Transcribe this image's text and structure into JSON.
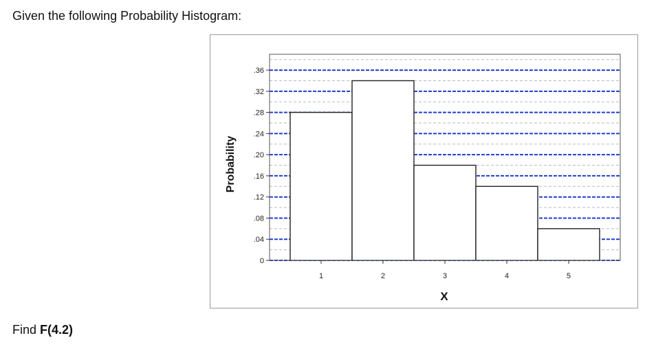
{
  "question": {
    "text": "Given the following Probability Histogram:"
  },
  "find": {
    "prefix": "Find ",
    "expression": "F(4.2)"
  },
  "chart_data": {
    "type": "bar",
    "categories": [
      "1",
      "2",
      "3",
      "4",
      "5"
    ],
    "values": [
      0.28,
      0.34,
      0.18,
      0.14,
      0.06
    ],
    "xlabel": "X",
    "ylabel": "Probability",
    "ylim": [
      0,
      0.39
    ],
    "yticks": [
      0,
      0.04,
      0.08,
      0.12,
      0.16,
      0.2,
      0.24,
      0.28,
      0.32,
      0.36
    ],
    "ytick_labels": [
      "0",
      ".04",
      ".08",
      ".12",
      ".16",
      ".20",
      ".24",
      ".28",
      ".32",
      ".36"
    ],
    "grid": true,
    "grid_color": "#1f3bd6",
    "bar_fill": "#ffffff",
    "bar_edge": "#222222"
  }
}
